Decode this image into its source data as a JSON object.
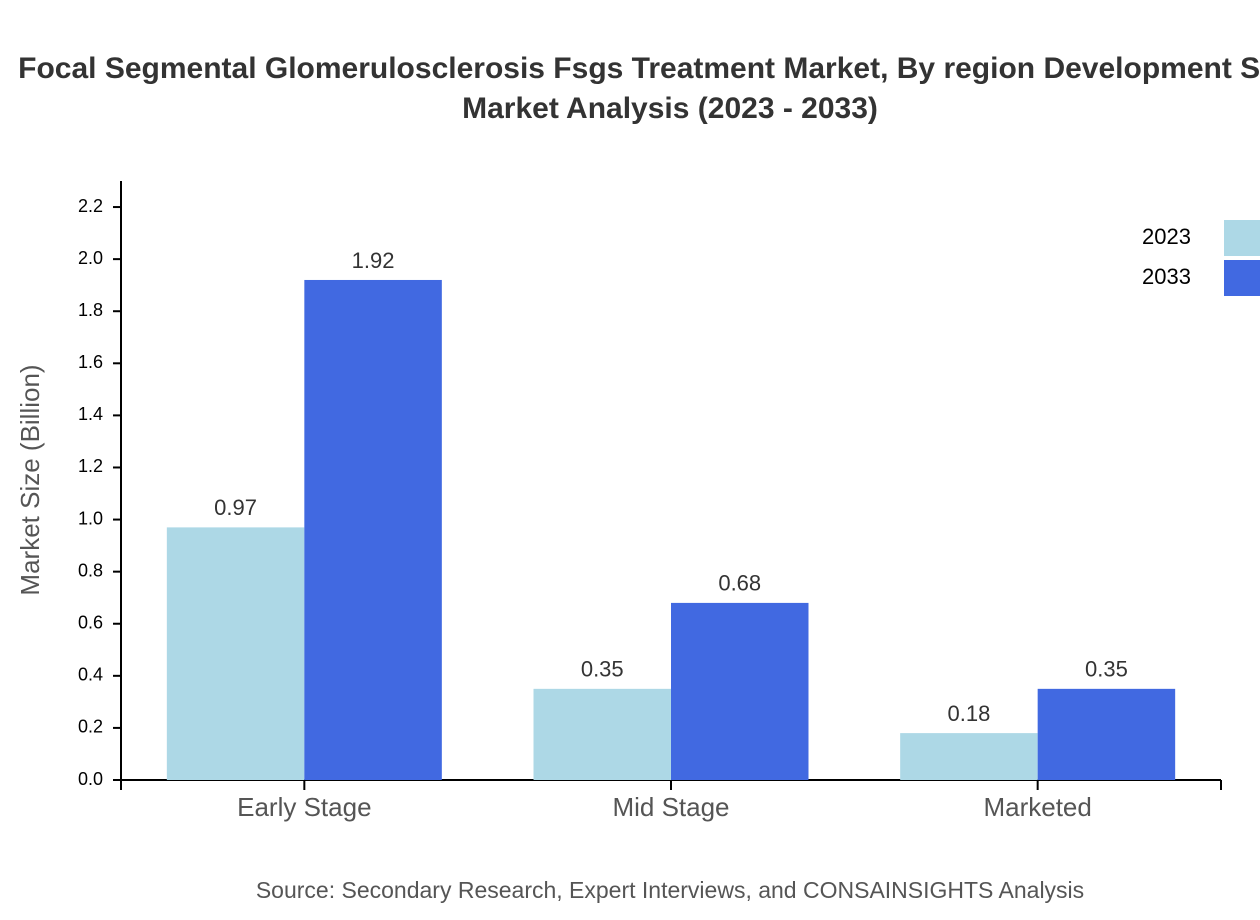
{
  "chart_data": {
    "type": "bar",
    "title": [
      "Focal Segmental Glomerulosclerosis Fsgs Treatment Market, By region Development Stage",
      "Market Analysis (2023 - 2033)"
    ],
    "y_label": "Market Size (Billion)",
    "source": "Source: Secondary Research, Expert Interviews, and CONSAINSIGHTS Analysis",
    "categories": [
      "Early Stage",
      "Mid Stage",
      "Marketed"
    ],
    "series": [
      {
        "name": "2023",
        "color": "#add8e6",
        "values": [
          0.97,
          0.35,
          0.18
        ]
      },
      {
        "name": "2033",
        "color": "#4169e1",
        "values": [
          1.92,
          0.68,
          0.35
        ]
      }
    ],
    "ylim": [
      0,
      2.3
    ],
    "yticks": [
      {
        "value": 0,
        "label": "0.0"
      },
      0.2,
      0.4,
      0.6,
      0.8,
      {
        "value": 1,
        "label": "1.0"
      },
      1.2,
      1.4,
      1.6,
      1.8,
      {
        "value": 2,
        "label": "2.0"
      },
      2.2
    ],
    "grid": false,
    "legend": "top-right"
  }
}
